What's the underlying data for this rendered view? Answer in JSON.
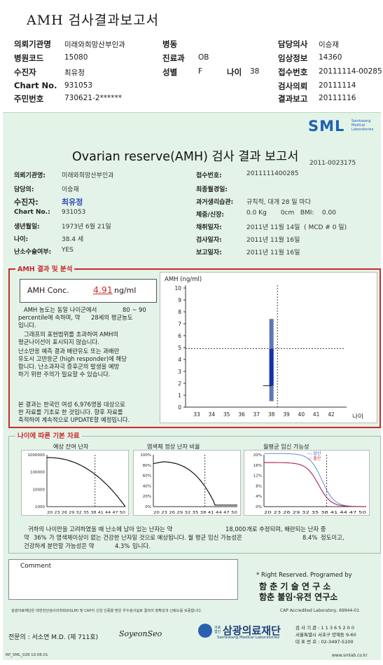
{
  "header": {
    "title": "AMH 검사결과보고서",
    "rows": [
      {
        "l1": "의뢰기관명",
        "v1": "미래와희망산부인과",
        "l2": "병동",
        "v2": "",
        "l3": "담당의사",
        "v3": "이승재"
      },
      {
        "l1": "병원코드",
        "v1": "15080",
        "l2": "진료과",
        "v2": "OB",
        "l3": "임상정보",
        "v3": "14360"
      },
      {
        "l1": "수진자",
        "v1": "최유정",
        "l2": "성별",
        "v2": "F",
        "l3": "접수번호",
        "v3": "20111114-00285"
      },
      {
        "l1": "Chart No.",
        "v1": "931053",
        "l2": "",
        "v2": "",
        "l3": "검사의뢰",
        "v3": "20111114"
      },
      {
        "l1": "주민번호",
        "v1": "730621-2******",
        "l2": "",
        "v2": "",
        "l3": "결과보고",
        "v3": "20111116"
      }
    ],
    "age_label": "나이",
    "age_value": "38"
  },
  "logo": {
    "text": "SML",
    "sub": "Samkwang Medical Laboratories"
  },
  "report": {
    "title": "Ovarian reserve(AMH) 검사 결과 보고서",
    "number": "2011-0023175",
    "left": [
      {
        "label": "의뢰기관명:",
        "value": "미래와희망산부인과"
      },
      {
        "label": "담당의:",
        "value": "이승재"
      },
      {
        "label": "수진자:",
        "value": "최유정"
      },
      {
        "label": "Chart No.:",
        "value": "931053"
      },
      {
        "label": "생년월일:",
        "value": "1973년 6월 21일"
      },
      {
        "label": "나이:",
        "value": "38.4 세"
      },
      {
        "label": "난소수술여부:",
        "value": "YES"
      }
    ],
    "right": [
      {
        "label": "접수번호:",
        "value": "2011111400285"
      },
      {
        "label": "최종월경일:",
        "value": ""
      },
      {
        "label": "과거생리습관:",
        "value": "규칙적, 대개   28 일 마다"
      },
      {
        "label": "체중/신장:",
        "value": "0.0 Kg       0cm   BMI:    0.00"
      },
      {
        "label": "채취일자:",
        "value": "2011년 11월 14일  ( MCD # 0 일)"
      },
      {
        "label": "검사일자:",
        "value": "2011년 11월 16일"
      },
      {
        "label": "보고일자:",
        "value": "2011년 11월 16일"
      }
    ]
  },
  "amh": {
    "section_title": "AMH 결과 및 분석",
    "conc_label": "AMH Conc.",
    "conc_value": "4.91",
    "conc_unit": "ng/ml",
    "p1a": "AMH 농도는 동일 나이군에서",
    "p1b": "80 ~  90",
    "p1c": "percentile에 속하며,  약",
    "p1d": "28세의 평균농도",
    "p1e": "입니다.",
    "p2a": "그래프의 표현범위를 초과하여 AMH의",
    "p2b": "평균나이선이 표시되지 않습니다.",
    "p3": [
      "난소반응 예측 결과 배란유도 또는 과배란",
      "유도시 고반응군 (high responder)에 해당",
      "합니다. 난소과자극 증후군의 발생을 예방",
      "하기 위한 주의가 필요할 수 있습니다."
    ],
    "p4": [
      "본 결과는 한국인 여성 6,976명을 대상으로",
      "한 자료를 기초로 한 것입니다. 향후 자료를",
      "축적하여 계속적으로 UPDATE할 예정입니다."
    ]
  },
  "chart_data": {
    "type": "box",
    "ylabel": "AMH (ng/ml)",
    "xlabel": "나이",
    "x": [
      33,
      34,
      35,
      36,
      37,
      38,
      39,
      40,
      41,
      42
    ],
    "ylim": [
      0,
      10
    ],
    "yticks": [
      0,
      1,
      2,
      3,
      4,
      5,
      6,
      7,
      8,
      9,
      10
    ],
    "patient": {
      "age": 38.4,
      "amh": 4.91
    },
    "range_at_38": {
      "low": 0.5,
      "high": 7.4,
      "q1": 1.8,
      "q3": 4.9
    },
    "grid": false
  },
  "age_section": {
    "title": "나이에 따른 기본 자료",
    "charts": [
      {
        "title": "예상 잔여 난자",
        "yticks": [
          "1000000",
          "100000",
          "10000",
          "1000"
        ],
        "xticks": "20 23 26 29 32 35 38 41 44 47 50"
      },
      {
        "title": "염색체 정상 난자 비율",
        "yticks": [
          "100%",
          "80%",
          "60%",
          "40%",
          "20%",
          "0%"
        ],
        "xticks": "20 23 26 29 32 35 38 41 44 47 50"
      },
      {
        "title": "월평균 임신 가능성",
        "yticks": [
          "20%",
          "16%",
          "12%",
          "8%",
          "4%",
          "0%"
        ],
        "xticks": "20 23 26 29 32 35 38 41 44 47 50",
        "legend_a": "--: 임신",
        "legend_b": "--: 출산"
      }
    ],
    "s1a": "귀하의 나이만을 고려하였을 때 난소에 남아 있는 난자는 약",
    "s1b": "18,000",
    "s1c": "개로 추정되며, 배란되는 난자 중",
    "s2a": "약",
    "s2b": "36%",
    "s2c": "가 염색체이상이 없는 건강한 난자일 것으로 예상됩니다. 월 평균 임신 가능성은",
    "s2d": "8.4%",
    "s2e": "정도이고,",
    "s3a": "건강하게 분만할 가능성은 약",
    "s3b": "4.3%",
    "s3c": "입니다."
  },
  "footer": {
    "comment_label": "Comment",
    "rights": "* Right Reserved. Programed by",
    "lab1": "함 춘  기 술  연 구 소",
    "lab2": "함춘 불임·유전 연구소",
    "cert_left": "삼광의료재단은 대한진단검사의학회(KSLM) 및 CAP의 신임 인증을 받은 우수검사실로 결과의 정확성과 신뢰도를 보증합니다.",
    "cert_right": "CAP  Accredited  Laboratory,  69944-01",
    "doctor": "전문의 : 서소연 M.D.  (제 711호)",
    "signature": "SoyeonSeo",
    "org_small": "의료법인",
    "org": "삼광의료재단",
    "org_en": "Samkwang Medical Laboratories",
    "contact": [
      "검 사 기 관 : 1 1 3 6 5 2 0 0",
      "서울특별시 서초구 양재동 9-60",
      "대 표 번 호 : 02-3497-5100"
    ],
    "form_code": "RP_SML_028  10.06.01",
    "url": "www.smlab.co.kr"
  }
}
